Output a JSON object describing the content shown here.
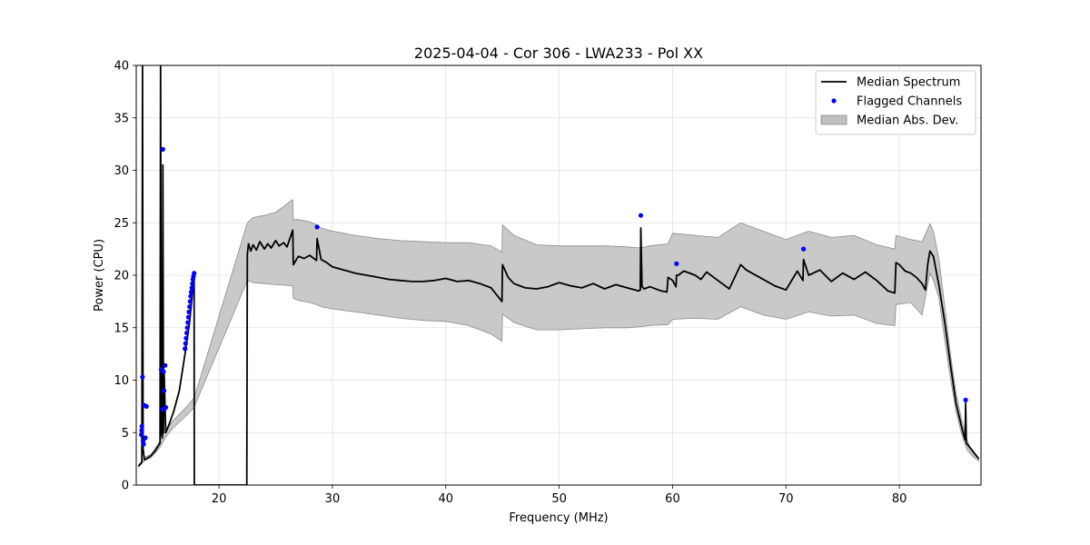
{
  "chart_data": {
    "type": "line",
    "title": "2025-04-04 - Cor 306 - LWA233 - Pol XX",
    "xlabel": "Frequency (MHz)",
    "ylabel": "Power (CPU)",
    "xlim": [
      12.7,
      87.2
    ],
    "ylim": [
      0,
      40
    ],
    "xticks": [
      20,
      30,
      40,
      50,
      60,
      70,
      80
    ],
    "yticks": [
      0,
      5,
      10,
      15,
      20,
      25,
      30,
      35,
      40
    ],
    "grid": true,
    "legend_position": "top-right",
    "colors": {
      "median": "#000000",
      "flagged": "#0000ff",
      "mad": "#bfbfbf",
      "mad_edge": "#8c8c8c"
    },
    "series": [
      {
        "name": "Median Spectrum",
        "kind": "line",
        "x": [
          12.9,
          13.2,
          13.25,
          13.3,
          13.4,
          13.45,
          13.6,
          14.0,
          14.4,
          14.8,
          14.85,
          14.9,
          15.0,
          15.05,
          15.1,
          15.15,
          15.3,
          15.6,
          16.0,
          16.5,
          17.0,
          17.4,
          17.8,
          17.82,
          18.0,
          19.0,
          20.0,
          21.0,
          22.0,
          22.45,
          22.5,
          22.6,
          22.8,
          23.0,
          23.3,
          23.6,
          24.0,
          24.3,
          24.6,
          25.0,
          25.3,
          25.7,
          26.0,
          26.5,
          26.55,
          27.0,
          27.5,
          28.0,
          28.6,
          28.65,
          29.0,
          29.5,
          30.0,
          31.0,
          32.0,
          33.0,
          34.0,
          35.0,
          36.0,
          37.0,
          38.0,
          39.0,
          40.0,
          41.0,
          42.0,
          43.0,
          44.0,
          44.95,
          45.0,
          45.5,
          46.0,
          47.0,
          48.0,
          49.0,
          50.0,
          51.0,
          52.0,
          53.0,
          54.0,
          55.0,
          56.0,
          57.0,
          57.15,
          57.2,
          57.3,
          57.5,
          58.0,
          59.0,
          59.5,
          59.6,
          60.0,
          60.3,
          60.35,
          60.5,
          61.0,
          62.0,
          62.5,
          63.0,
          64.0,
          65.0,
          66.0,
          66.5,
          67.0,
          68.0,
          69.0,
          70.0,
          71.0,
          71.5,
          71.55,
          72.0,
          73.0,
          74.0,
          75.0,
          76.0,
          77.0,
          78.0,
          79.0,
          79.6,
          79.7,
          80.0,
          80.5,
          81.0,
          81.5,
          82.0,
          82.3,
          82.5,
          82.7,
          83.0,
          83.5,
          84.0,
          84.5,
          85.0,
          85.5,
          85.8,
          85.85,
          85.9,
          86.5,
          87.0
        ],
        "y": [
          1.8,
          2.2,
          40.0,
          3.5,
          2.6,
          2.4,
          2.5,
          2.8,
          3.3,
          4.0,
          40.0,
          5.0,
          4.5,
          30.5,
          5.0,
          11.0,
          5.0,
          5.8,
          7.0,
          9.0,
          12.5,
          15.5,
          20.0,
          0.0,
          0.0,
          0.0,
          0.0,
          0.0,
          0.0,
          0.0,
          22.0,
          23.0,
          22.3,
          22.9,
          22.4,
          23.2,
          22.5,
          23.0,
          22.6,
          23.3,
          22.8,
          23.1,
          22.7,
          24.3,
          21.0,
          21.8,
          21.6,
          21.9,
          21.4,
          23.5,
          21.5,
          21.2,
          20.8,
          20.5,
          20.2,
          20.0,
          19.8,
          19.6,
          19.5,
          19.4,
          19.4,
          19.5,
          19.7,
          19.4,
          19.5,
          19.2,
          18.8,
          17.5,
          21.0,
          19.8,
          19.2,
          18.8,
          18.7,
          18.9,
          19.3,
          19.0,
          18.8,
          19.2,
          18.7,
          19.1,
          18.8,
          18.5,
          18.6,
          24.5,
          18.9,
          18.7,
          18.9,
          18.5,
          18.4,
          19.8,
          19.5,
          18.9,
          20.0,
          20.0,
          20.4,
          20.0,
          19.6,
          20.3,
          19.5,
          18.7,
          21.0,
          20.5,
          20.2,
          19.6,
          19.0,
          18.6,
          20.4,
          19.5,
          21.5,
          20.0,
          20.5,
          19.4,
          20.2,
          19.6,
          20.3,
          19.5,
          18.5,
          18.3,
          21.2,
          21.0,
          20.4,
          20.2,
          19.8,
          19.2,
          18.6,
          21.0,
          22.3,
          21.8,
          19.0,
          15.5,
          11.5,
          7.8,
          5.5,
          4.3,
          7.8,
          4.0,
          3.2,
          2.5
        ]
      },
      {
        "name": "Flagged Channels",
        "kind": "scatter",
        "x": [
          13.15,
          13.18,
          13.2,
          13.25,
          13.3,
          13.35,
          13.4,
          13.5,
          13.6,
          14.9,
          15.0,
          15.05,
          15.1,
          15.15,
          15.2,
          15.25,
          15.3,
          17.0,
          17.05,
          17.1,
          17.15,
          17.2,
          17.25,
          17.3,
          17.35,
          17.4,
          17.45,
          17.5,
          17.55,
          17.6,
          17.65,
          17.7,
          17.75,
          17.8,
          28.65,
          57.2,
          60.35,
          71.55,
          85.85
        ],
        "y": [
          4.8,
          5.2,
          5.6,
          10.3,
          4.2,
          3.9,
          7.6,
          4.5,
          7.5,
          11.0,
          7.2,
          32.0,
          10.8,
          9.0,
          7.3,
          11.4,
          7.4,
          13.0,
          13.5,
          14.0,
          14.5,
          15.0,
          15.5,
          16.0,
          16.5,
          17.0,
          17.5,
          18.0,
          18.4,
          18.8,
          19.2,
          19.6,
          19.9,
          20.2,
          24.6,
          25.7,
          21.1,
          22.5,
          8.1
        ]
      },
      {
        "name": "Median Abs. Dev.",
        "kind": "band",
        "x": [
          12.9,
          13.5,
          14.0,
          14.8,
          15.3,
          16.0,
          17.0,
          17.8,
          22.5,
          23.0,
          24.0,
          25.0,
          26.5,
          26.55,
          27.0,
          28.0,
          28.6,
          29.0,
          30.0,
          32.0,
          34.0,
          36.0,
          38.0,
          40.0,
          42.0,
          44.0,
          44.95,
          45.0,
          46.0,
          48.0,
          50.0,
          52.0,
          54.0,
          56.0,
          57.2,
          58.0,
          59.6,
          60.0,
          62.0,
          64.0,
          66.0,
          68.0,
          70.0,
          72.0,
          74.0,
          76.0,
          78.0,
          79.6,
          79.7,
          81.0,
          82.0,
          82.7,
          83.0,
          83.5,
          84.0,
          84.5,
          85.0,
          85.5,
          86.0,
          86.5,
          87.0
        ],
        "upper": [
          1.9,
          2.7,
          2.9,
          4.2,
          5.2,
          6.2,
          7.3,
          8.3,
          25.0,
          25.5,
          25.7,
          26.0,
          27.2,
          25.3,
          25.3,
          25.1,
          24.8,
          24.5,
          24.2,
          23.8,
          23.5,
          23.3,
          23.2,
          23.1,
          23.1,
          22.8,
          22.2,
          24.8,
          23.8,
          22.9,
          22.8,
          22.8,
          22.8,
          22.7,
          22.6,
          22.8,
          23.0,
          24.0,
          23.8,
          23.6,
          25.0,
          24.2,
          23.4,
          24.2,
          23.6,
          23.8,
          22.9,
          22.5,
          23.8,
          23.4,
          23.2,
          24.9,
          24.2,
          21.5,
          17.0,
          12.5,
          8.8,
          6.2,
          4.2,
          3.0,
          2.5
        ],
        "lower": [
          1.7,
          2.4,
          2.6,
          3.6,
          4.6,
          5.5,
          6.5,
          7.4,
          19.5,
          19.3,
          19.2,
          19.1,
          19.0,
          17.8,
          17.6,
          17.4,
          17.2,
          17.0,
          16.8,
          16.5,
          16.2,
          15.9,
          15.7,
          15.6,
          15.2,
          14.4,
          13.7,
          16.3,
          15.5,
          14.8,
          14.8,
          14.9,
          15.0,
          15.0,
          15.1,
          15.2,
          15.3,
          15.8,
          15.9,
          15.8,
          17.0,
          16.2,
          15.8,
          16.5,
          16.1,
          16.2,
          15.4,
          15.2,
          17.2,
          17.4,
          16.2,
          20.2,
          19.5,
          17.8,
          13.8,
          10.2,
          7.0,
          4.8,
          3.3,
          2.7,
          2.3
        ]
      }
    ]
  }
}
